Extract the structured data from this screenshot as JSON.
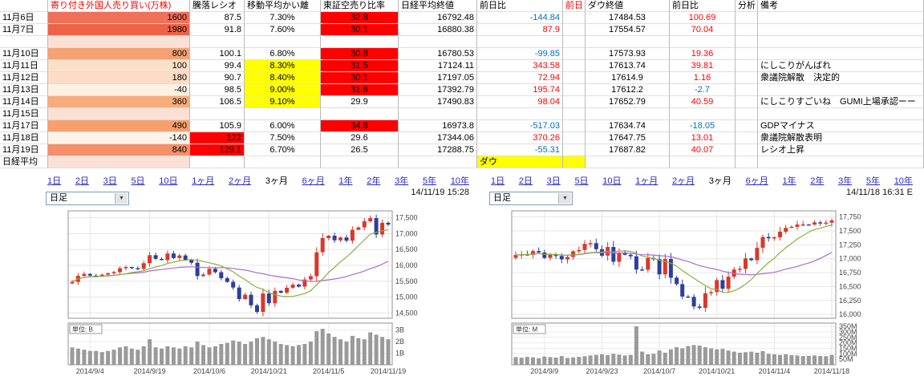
{
  "colors": {
    "positive": "#ff0000",
    "negative": "#0070c0",
    "cell_red": "#ff0000",
    "cell_yellow": "#ffff00",
    "candle_up": "#d9382b",
    "candle_down": "#2c3f9e",
    "ma_short": "#8fae3c",
    "ma_long": "#b168d2",
    "volume_bar": "#9a9a9a"
  },
  "sheet": {
    "header": [
      "",
      "寄り付き外国人売り買い(万株)",
      "騰落レシオ",
      "移動平均かい離",
      "東証空売り比率",
      "日経平均終値",
      "前日比",
      "前日",
      "ダウ終値",
      "前日比",
      "分析",
      "備考"
    ],
    "header_colors": {
      "1": "#ff0000",
      "7": "#ff0000"
    },
    "rows": [
      [
        "11月6日",
        {
          "t": "1600",
          "bg": "#f1705a"
        },
        "87.5",
        "7.30%",
        {
          "t": "32.8",
          "bg": "#ff0000"
        },
        "16792.48",
        {
          "t": "-144.84",
          "fg": "#0070c0"
        },
        "",
        "17484.53",
        {
          "t": "100.69",
          "fg": "#ff0000"
        },
        "",
        ""
      ],
      [
        "11月7日",
        {
          "t": "1980",
          "bg": "#ee6247"
        },
        "91.8",
        "7.60%",
        {
          "t": "30.1",
          "bg": "#ff0000"
        },
        "16880.38",
        {
          "t": "87.9",
          "fg": "#ff0000"
        },
        "",
        "17554.57",
        {
          "t": "70.04",
          "fg": "#ff0000"
        },
        "",
        ""
      ],
      [
        "",
        {
          "t": "",
          "bg": "#fbe0d6"
        },
        "",
        "",
        "",
        "",
        "",
        "",
        "",
        "",
        "",
        ""
      ],
      [
        "11月10日",
        {
          "t": "800",
          "bg": "#f7a173"
        },
        "100.1",
        "6.80%",
        {
          "t": "30.8",
          "bg": "#ff0000"
        },
        "16780.53",
        {
          "t": "-99.85",
          "fg": "#0070c0"
        },
        "",
        "17573.93",
        {
          "t": "19.36",
          "fg": "#ff0000"
        },
        "",
        ""
      ],
      [
        "11月11日",
        {
          "t": "100",
          "bg": "#fcdfc9"
        },
        "99.4",
        {
          "t": "8.30%",
          "bg": "#ffff00"
        },
        {
          "t": "31.5",
          "bg": "#ff0000"
        },
        "17124.11",
        {
          "t": "343.58",
          "fg": "#ff0000"
        },
        "",
        "17613.74",
        {
          "t": "39.81",
          "fg": "#ff0000"
        },
        "",
        "にしこりがんばれ"
      ],
      [
        "11月12日",
        {
          "t": "180",
          "bg": "#fcdcc4"
        },
        "90.7",
        {
          "t": "8.40%",
          "bg": "#ffff00"
        },
        {
          "t": "30.1",
          "bg": "#ff0000"
        },
        "17197.05",
        {
          "t": "72.94",
          "fg": "#ff0000"
        },
        "",
        "17614.9",
        {
          "t": "1.16",
          "fg": "#ff0000"
        },
        "",
        "衆議院解散　決定的"
      ],
      [
        "11月13日",
        {
          "t": "-40",
          "bg": "#fef0e2"
        },
        "98.5",
        {
          "t": "9.00%",
          "bg": "#ffff00"
        },
        {
          "t": "31.6",
          "bg": "#ff0000"
        },
        "17392.79",
        {
          "t": "195.74",
          "fg": "#ff0000"
        },
        "",
        "17612.2",
        {
          "t": "-2.7",
          "fg": "#0070c0"
        },
        "",
        ""
      ],
      [
        "11月14日",
        {
          "t": "360",
          "bg": "#f9ac7b"
        },
        "106.5",
        {
          "t": "9.10%",
          "bg": "#ffff00"
        },
        "29.9",
        "17490.83",
        {
          "t": "98.04",
          "fg": "#ff0000"
        },
        "",
        "17652.79",
        {
          "t": "40.59",
          "fg": "#ff0000"
        },
        "",
        "にしこりすごいね　GUMI上場承認ーー"
      ],
      [
        "11月15日",
        {
          "t": "",
          "bg": "#fbe0d6"
        },
        "",
        "",
        "",
        "",
        "",
        "",
        "",
        "",
        "",
        ""
      ],
      [
        "11月17日",
        {
          "t": "490",
          "bg": "#f89f6e"
        },
        "105.9",
        "6.00%",
        {
          "t": "34.8",
          "bg": "#ff0000"
        },
        "16973.8",
        {
          "t": "-517.03",
          "fg": "#0070c0"
        },
        "",
        "17634.74",
        {
          "t": "-18.05",
          "fg": "#0070c0"
        },
        "",
        "GDPマイナス"
      ],
      [
        "11月18日",
        {
          "t": "-140",
          "bg": "#fff3e9"
        },
        {
          "t": "122",
          "bg": "#ff0000"
        },
        "7.50%",
        "29.6",
        "17344.06",
        {
          "t": "370.26",
          "fg": "#ff0000"
        },
        "",
        "17647.75",
        {
          "t": "13.01",
          "fg": "#ff0000"
        },
        "",
        "衆議院解散表明"
      ],
      [
        "11月19日",
        {
          "t": "840",
          "bg": "#f5906a"
        },
        {
          "t": "129.1",
          "bg": "#ff0000"
        },
        "6.70%",
        "26.5",
        "17288.75",
        {
          "t": "-55.31",
          "fg": "#0070c0"
        },
        "",
        "17687.82",
        {
          "t": "40.07",
          "fg": "#ff0000"
        },
        "",
        "レシオ上昇"
      ],
      [
        "日経平均",
        {
          "t": "",
          "bg": "#fbe0d6"
        },
        "",
        "",
        "",
        "",
        {
          "t": "ダウ",
          "bg": "#ffff00",
          "align": "left"
        },
        {
          "t": "",
          "bg": "#ffff00"
        },
        "",
        "",
        "",
        ""
      ]
    ]
  },
  "period_tabs": [
    "1日",
    "2日",
    "3日",
    "5日",
    "10日",
    "1ヶ月",
    "2ヶ月",
    "3ヶ月",
    "6ヶ月",
    "1年",
    "2年",
    "3年",
    "5年",
    "10年"
  ],
  "chart_data": [
    {
      "type": "candlestick",
      "name": "nikkei-daily",
      "interval_label": "日足",
      "timestamp": "14/11/19 15:28",
      "selected_tab": "3ヶ月",
      "unit_label": "単位: B",
      "y_ticks": [
        {
          "v": 17500,
          "t": "17,500"
        },
        {
          "v": 17000,
          "t": "17,000"
        },
        {
          "v": 16500,
          "t": "16,500"
        },
        {
          "v": 16000,
          "t": "16,000"
        },
        {
          "v": 15500,
          "t": "15,500"
        },
        {
          "v": 15000,
          "t": "15,000"
        },
        {
          "v": 14500,
          "t": "14,500"
        }
      ],
      "y_range": [
        14330,
        17720
      ],
      "vol_ticks": [
        {
          "v": 3,
          "t": "3B"
        },
        {
          "v": 2,
          "t": "2B"
        },
        {
          "v": 1,
          "t": "1B"
        }
      ],
      "vol_max": 3.6,
      "x_ticks": [
        {
          "i": 3,
          "t": "2014/9/4"
        },
        {
          "i": 13,
          "t": "2014/9/19"
        },
        {
          "i": 23,
          "t": "2014/10/6"
        },
        {
          "i": 33,
          "t": "2014/10/21"
        },
        {
          "i": 43,
          "t": "2014/11/5"
        },
        {
          "i": 53,
          "t": "2014/11/19"
        }
      ],
      "closes": [
        15477,
        15669,
        15729,
        15676,
        15668,
        15705,
        15749,
        15788,
        15909,
        15948,
        15911,
        15888,
        16067,
        16321,
        16205,
        16167,
        16374,
        16230,
        16310,
        16174,
        16082,
        15662,
        15709,
        15890,
        15784,
        15595,
        15479,
        15300,
        14936,
        15073,
        14738,
        14532,
        15111,
        14804,
        15196,
        15139,
        15292,
        15389,
        15329,
        15554,
        15658,
        16413,
        16862,
        16937,
        16792,
        16880,
        16780,
        17124,
        17197,
        17393,
        17491,
        16974,
        17344,
        17289
      ],
      "volumes": [
        1.5,
        1.4,
        1.3,
        1.2,
        1.2,
        1.1,
        1.2,
        1.3,
        1.5,
        1.6,
        1.4,
        1.3,
        1.6,
        2.2,
        1.5,
        1.4,
        1.6,
        1.5,
        1.4,
        1.6,
        1.5,
        2.0,
        1.7,
        1.5,
        1.6,
        1.8,
        1.9,
        2.1,
        2.0,
        1.8,
        2.0,
        2.3,
        2.4,
        2.2,
        2.0,
        1.8,
        1.7,
        1.6,
        1.7,
        1.8,
        2.0,
        2.9,
        3.1,
        2.7,
        2.4,
        2.2,
        2.0,
        2.5,
        2.3,
        2.2,
        2.8,
        2.6,
        2.4,
        2.2
      ]
    },
    {
      "type": "candlestick",
      "name": "dow-daily",
      "interval_label": "日足",
      "timestamp": "14/11/18 16:31 E",
      "selected_tab": "3ヶ月",
      "unit_label": "単位: M",
      "y_ticks": [
        {
          "v": 17750,
          "t": "17,750"
        },
        {
          "v": 17500,
          "t": "17,500"
        },
        {
          "v": 17250,
          "t": "17,250"
        },
        {
          "v": 17000,
          "t": "17,000"
        },
        {
          "v": 16750,
          "t": "16,750"
        },
        {
          "v": 16500,
          "t": "16,500"
        },
        {
          "v": 16250,
          "t": "16,250"
        },
        {
          "v": 16000,
          "t": "16,000"
        }
      ],
      "y_range": [
        15930,
        17860
      ],
      "vol_ticks": [
        {
          "v": 350,
          "t": "350M"
        },
        {
          "v": 300,
          "t": "300M"
        },
        {
          "v": 250,
          "t": "250M"
        },
        {
          "v": 200,
          "t": "200M"
        },
        {
          "v": 150,
          "t": "150M"
        },
        {
          "v": 100,
          "t": "100M"
        },
        {
          "v": 50,
          "t": "50M"
        }
      ],
      "vol_max": 380,
      "x_ticks": [
        {
          "i": 5,
          "t": "2014/9/9"
        },
        {
          "i": 15,
          "t": "2014/9/23"
        },
        {
          "i": 25,
          "t": "2014/10/7"
        },
        {
          "i": 35,
          "t": "2014/10/21"
        },
        {
          "i": 45,
          "t": "2014/11/4"
        },
        {
          "i": 55,
          "t": "2014/11/18"
        }
      ],
      "closes": [
        17067,
        17078,
        17070,
        17137,
        17111,
        17014,
        17069,
        17049,
        16988,
        17031,
        17132,
        17157,
        17266,
        17280,
        17172,
        17056,
        17210,
        16946,
        17113,
        17071,
        17043,
        16805,
        16801,
        17010,
        16991,
        16719,
        16994,
        16659,
        16544,
        16321,
        16315,
        16142,
        16117,
        16380,
        16400,
        16615,
        16461,
        16678,
        16805,
        16818,
        17006,
        16974,
        17195,
        17390,
        17366,
        17384,
        17485,
        17555,
        17574,
        17614,
        17615,
        17612,
        17653,
        17635,
        17648,
        17688
      ],
      "volumes": [
        70,
        65,
        72,
        68,
        60,
        75,
        70,
        66,
        80,
        62,
        68,
        72,
        78,
        85,
        90,
        95,
        88,
        100,
        92,
        85,
        90,
        350,
        120,
        95,
        100,
        130,
        110,
        140,
        160,
        150,
        170,
        180,
        175,
        160,
        150,
        140,
        145,
        130,
        120,
        110,
        115,
        120,
        110,
        125,
        100,
        95,
        90,
        95,
        88,
        85,
        80,
        82,
        85,
        80,
        78,
        90
      ]
    }
  ]
}
